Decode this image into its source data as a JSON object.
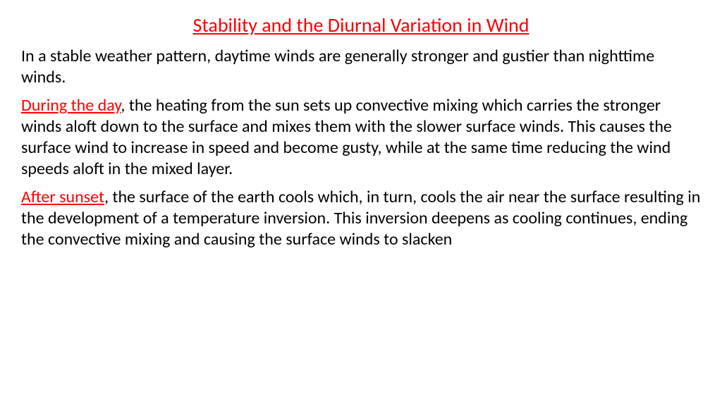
{
  "title": "Stability and the Diurnal Variation in Wind",
  "para1": "In a stable weather pattern, daytime winds are generally stronger and gustier than nighttime winds.",
  "para2": {
    "highlight": "During the day",
    "rest": ", the heating from the sun sets up convective mixing which carries the stronger winds aloft down to the surface and mixes them with the slower surface winds. This causes the surface wind to increase in speed and become gusty, while at the same time reducing the wind speeds aloft in the mixed layer."
  },
  "para3": {
    "highlight": "After sunset",
    "rest": ", the surface of the earth cools which, in turn, cools the air near the surface resulting in the development of a temperature inversion. This inversion deepens as cooling continues, ending the convective mixing and causing the surface winds to slacken"
  },
  "colors": {
    "title_color": "#ff0000",
    "highlight_color": "#ff0000",
    "body_text": "#000000",
    "background": "#ffffff"
  },
  "typography": {
    "title_fontsize": 28,
    "body_fontsize": 24,
    "font_family": "Calibri"
  }
}
